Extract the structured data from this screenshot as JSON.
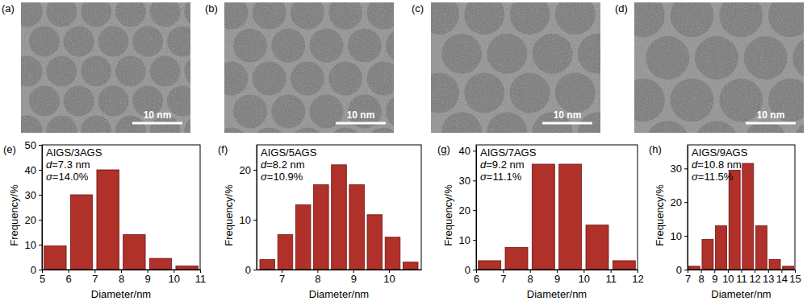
{
  "chart_data": [
    {
      "type": "bar",
      "panel": "(e)",
      "title": "AIGS/3AGS",
      "annotations": [
        "d=7.3 nm",
        "σ=14.0%"
      ],
      "x_label": "Diameter/nm",
      "y_label": "Frequency/%",
      "x": [
        5.5,
        6.5,
        7.5,
        8.5,
        9.5,
        10.5
      ],
      "values": [
        9.5,
        30,
        40,
        14,
        4.5,
        1.5
      ],
      "color": "#b0302a",
      "xlim": [
        5,
        11
      ],
      "xticks": [
        5,
        6,
        7,
        8,
        9,
        10,
        11
      ],
      "ylim": [
        0,
        50
      ],
      "yticks": [
        0,
        10,
        20,
        30,
        40,
        50
      ]
    },
    {
      "type": "bar",
      "panel": "(f)",
      "title": "AIGS/5AGS",
      "annotations": [
        "d=8.2 nm",
        "σ=10.9%"
      ],
      "x_label": "Diameter/nm",
      "y_label": "Frequency/%",
      "x": [
        6.6,
        7.1,
        7.6,
        8.1,
        8.6,
        9.1,
        9.6,
        10.1,
        10.6
      ],
      "values": [
        2,
        7,
        13,
        17,
        21,
        17,
        11,
        6.5,
        1.5
      ],
      "color": "#b0302a",
      "xlim": [
        6.3,
        10.9
      ],
      "xticks": [
        7,
        8,
        9,
        10
      ],
      "ylim": [
        0,
        25
      ],
      "yticks": [
        0,
        10,
        20
      ]
    },
    {
      "type": "bar",
      "panel": "(g)",
      "title": "AIGS/7AGS",
      "annotations": [
        "d=9.2 nm",
        "σ=11.1%"
      ],
      "x_label": "Diameter/nm",
      "y_label": "Frequency/%",
      "x": [
        6.5,
        7.5,
        8.5,
        9.5,
        10.5,
        11.5
      ],
      "values": [
        3,
        7.5,
        35.5,
        35.5,
        15,
        3
      ],
      "color": "#b0302a",
      "xlim": [
        6,
        12
      ],
      "xticks": [
        6,
        7,
        8,
        9,
        10,
        11,
        12
      ],
      "ylim": [
        0,
        42
      ],
      "yticks": [
        0,
        10,
        20,
        30,
        40
      ]
    },
    {
      "type": "bar",
      "panel": "(h)",
      "title": "AIGS/9AGS",
      "annotations": [
        "d=10.8 nm",
        "σ=11.5%"
      ],
      "x_label": "Diameter/nm",
      "y_label": "Frequency/%",
      "x": [
        7.5,
        8.5,
        9.5,
        10.5,
        11.5,
        12.5,
        13.5,
        14.5
      ],
      "values": [
        1,
        9,
        13,
        29.5,
        31.5,
        13,
        3,
        1
      ],
      "color": "#b0302a",
      "xlim": [
        7,
        15
      ],
      "xticks": [
        7,
        8,
        9,
        10,
        11,
        12,
        13,
        14,
        15
      ],
      "ylim": [
        0,
        37
      ],
      "yticks": [
        0,
        10,
        20,
        30
      ]
    }
  ],
  "images": [
    {
      "panel": "(a)",
      "scale_bar": "10 nm"
    },
    {
      "panel": "(b)",
      "scale_bar": "10 nm"
    },
    {
      "panel": "(c)",
      "scale_bar": "10 nm"
    },
    {
      "panel": "(d)",
      "scale_bar": "10 nm"
    }
  ]
}
